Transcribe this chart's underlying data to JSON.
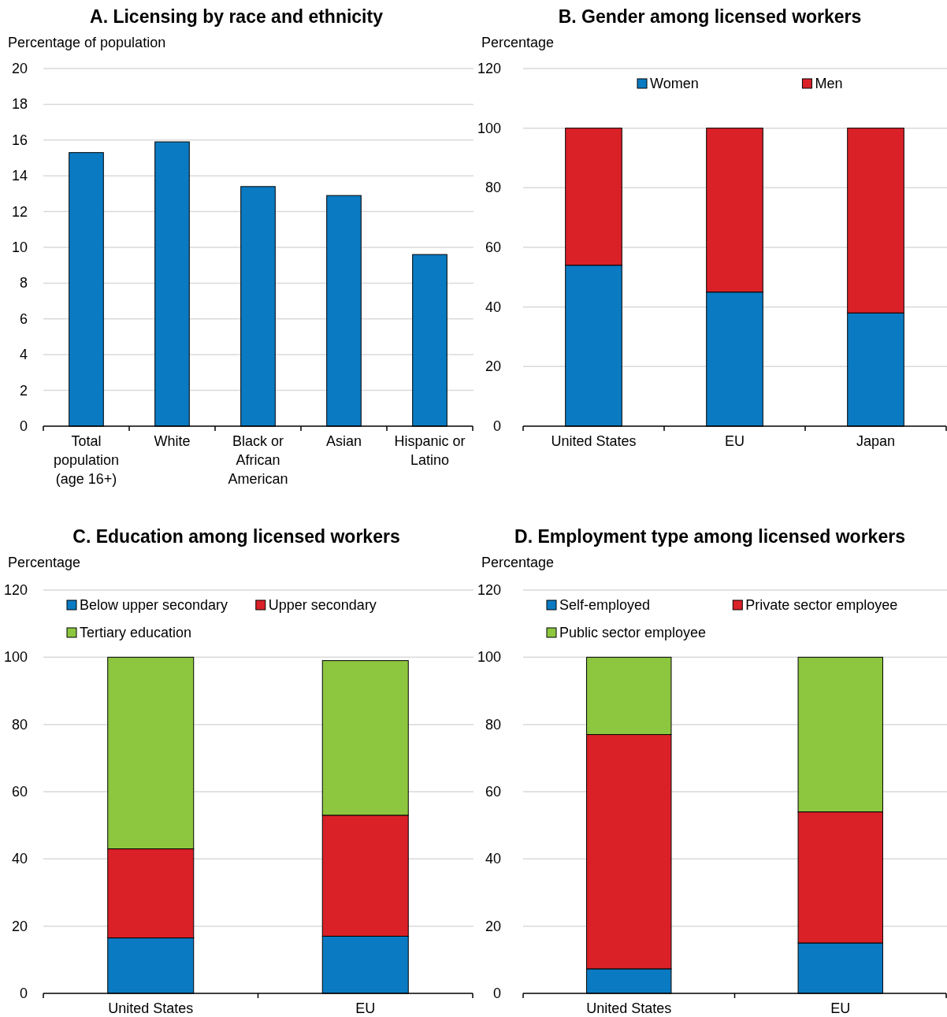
{
  "chart_data": [
    {
      "type": "bar",
      "title": "A. Licensing by race and ethnicity",
      "ylabel": "Percentage of population",
      "categories": [
        "Total population (age 16+)",
        "White",
        "Black or African American",
        "Asian",
        "Hispanic or Latino"
      ],
      "values": [
        15.3,
        15.9,
        13.4,
        12.9,
        9.6
      ],
      "color": "#0a7bc2",
      "ylim": [
        0,
        20
      ],
      "yticks": [
        0,
        2,
        4,
        6,
        8,
        10,
        12,
        14,
        16,
        18,
        20
      ],
      "grid": "y"
    },
    {
      "type": "bar",
      "title": "B. Gender among licensed workers",
      "ylabel": "Percentage",
      "categories": [
        "United States",
        "EU",
        "Japan"
      ],
      "stacked": true,
      "series": [
        {
          "name": "Women",
          "color": "#0a7bc2",
          "values": [
            54,
            45,
            38
          ]
        },
        {
          "name": "Men",
          "color": "#da2128",
          "values": [
            46,
            55,
            62
          ]
        }
      ],
      "ylim": [
        0,
        120
      ],
      "yticks": [
        0,
        20,
        40,
        60,
        80,
        100,
        120
      ],
      "grid": "y",
      "legend": "top"
    },
    {
      "type": "bar",
      "title": "C. Education among licensed workers",
      "ylabel": "Percentage",
      "categories": [
        "United States",
        "EU"
      ],
      "stacked": true,
      "series": [
        {
          "name": "Below upper secondary",
          "color": "#0a7bc2",
          "values": [
            16.5,
            17
          ]
        },
        {
          "name": "Upper secondary",
          "color": "#da2128",
          "values": [
            26.5,
            36
          ]
        },
        {
          "name": "Tertiary education",
          "color": "#8dc63f",
          "values": [
            57,
            46
          ]
        }
      ],
      "ylim": [
        0,
        120
      ],
      "yticks": [
        0,
        20,
        40,
        60,
        80,
        100,
        120
      ],
      "grid": "y",
      "legend": "top"
    },
    {
      "type": "bar",
      "title": "D. Employment type among licensed workers",
      "ylabel": "Percentage",
      "categories": [
        "United States",
        "EU"
      ],
      "stacked": true,
      "series": [
        {
          "name": "Self-employed",
          "color": "#0a7bc2",
          "values": [
            7.3,
            15
          ]
        },
        {
          "name": "Private sector employee",
          "color": "#da2128",
          "values": [
            69.7,
            39
          ]
        },
        {
          "name": "Public sector employee",
          "color": "#8dc63f",
          "values": [
            23,
            46
          ]
        }
      ],
      "ylim": [
        0,
        120
      ],
      "yticks": [
        0,
        20,
        40,
        60,
        80,
        100,
        120
      ],
      "grid": "y",
      "legend": "top"
    }
  ]
}
